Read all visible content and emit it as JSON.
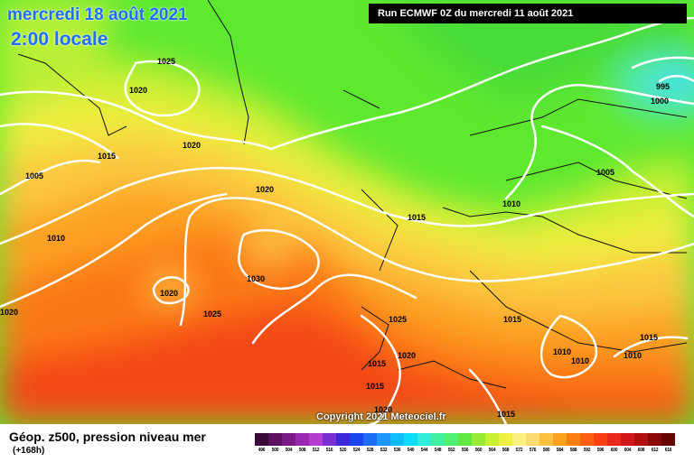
{
  "header": {
    "date": "mercredi 18 août 2021",
    "time": "2:00 locale",
    "run": "Run ECMWF 0Z du mercredi 11 août 2021"
  },
  "copyright": "Copyright 2021 Meteociel.fr",
  "footer": {
    "title": "Géop. z500, pression niveau mer",
    "subtitle": "(+168h)"
  },
  "isobar_labels": [
    "1025",
    "1020",
    "1015",
    "1005",
    "1010",
    "1020",
    "1020",
    "1030",
    "1020",
    "1025",
    "1020",
    "1015",
    "1025",
    "1020",
    "1015",
    "1015",
    "1020",
    "1010",
    "1005",
    "995",
    "1000",
    "1015",
    "1010",
    "1010",
    "1010",
    "1015"
  ],
  "scale": {
    "ticks": [
      "496",
      "500",
      "504",
      "508",
      "512",
      "516",
      "520",
      "524",
      "528",
      "532",
      "536",
      "540",
      "544",
      "548",
      "552",
      "556",
      "560",
      "564",
      "568",
      "572",
      "576",
      "580",
      "584",
      "588",
      "592",
      "596",
      "600",
      "604",
      "608",
      "612",
      "616"
    ],
    "colors": [
      "#3a0a3a",
      "#5b1160",
      "#7a1a88",
      "#9a28b0",
      "#b43cd0",
      "#7a30d0",
      "#3c28d8",
      "#1c44ee",
      "#1c6cf8",
      "#1c98fc",
      "#10bcfc",
      "#10dcfc",
      "#30ecd8",
      "#40f0a0",
      "#50f070",
      "#60e840",
      "#98ec38",
      "#c8f030",
      "#ecf040",
      "#fcf080",
      "#fcdc70",
      "#fcc040",
      "#fca020",
      "#fc8010",
      "#fc6010",
      "#f84010",
      "#e82818",
      "#d01818",
      "#b01010",
      "#8a0808",
      "#660404"
    ]
  }
}
